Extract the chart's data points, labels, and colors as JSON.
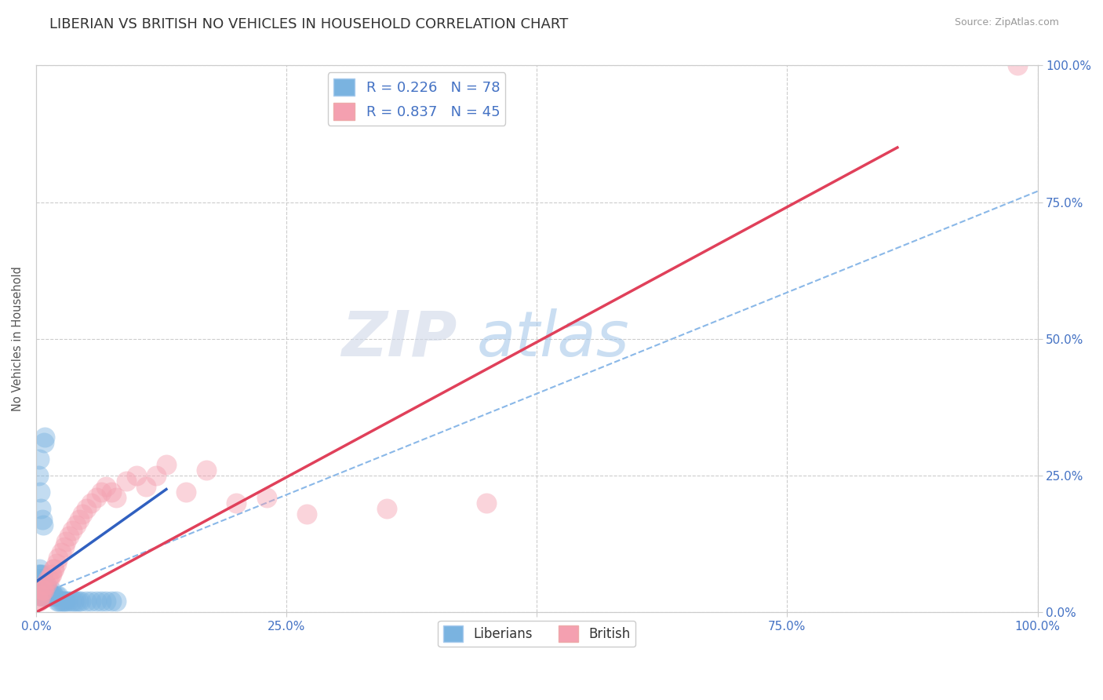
{
  "title": "LIBERIAN VS BRITISH NO VEHICLES IN HOUSEHOLD CORRELATION CHART",
  "source": "Source: ZipAtlas.com",
  "ylabel": "No Vehicles in Household",
  "xlim": [
    0,
    1.0
  ],
  "ylim": [
    0,
    1.0
  ],
  "xticks": [
    0,
    0.25,
    0.5,
    0.75,
    1.0
  ],
  "yticks": [
    0,
    0.25,
    0.5,
    0.75,
    1.0
  ],
  "xtick_labels": [
    "0.0%",
    "25.0%",
    "50.0%",
    "75.0%",
    "100.0%"
  ],
  "ytick_labels": [
    "0.0%",
    "25.0%",
    "50.0%",
    "75.0%",
    "100.0%"
  ],
  "liberian_color": "#7ab3e0",
  "british_color": "#f4a0b0",
  "liberian_line_color": "#3060c0",
  "british_line_color": "#e0405a",
  "liberian_R": 0.226,
  "liberian_N": 78,
  "british_R": 0.837,
  "british_N": 45,
  "background_color": "#ffffff",
  "grid_color": "#cccccc",
  "title_fontsize": 13,
  "tick_label_color": "#4472c4",
  "liberian_x": [
    0.001,
    0.001,
    0.001,
    0.002,
    0.002,
    0.002,
    0.002,
    0.003,
    0.003,
    0.003,
    0.003,
    0.003,
    0.003,
    0.004,
    0.004,
    0.004,
    0.004,
    0.005,
    0.005,
    0.005,
    0.005,
    0.005,
    0.006,
    0.006,
    0.006,
    0.006,
    0.007,
    0.007,
    0.007,
    0.007,
    0.008,
    0.008,
    0.008,
    0.009,
    0.009,
    0.01,
    0.01,
    0.01,
    0.011,
    0.011,
    0.012,
    0.012,
    0.013,
    0.014,
    0.015,
    0.015,
    0.016,
    0.017,
    0.018,
    0.02,
    0.021,
    0.022,
    0.023,
    0.025,
    0.027,
    0.028,
    0.03,
    0.032,
    0.035,
    0.038,
    0.04,
    0.042,
    0.045,
    0.05,
    0.055,
    0.06,
    0.065,
    0.07,
    0.075,
    0.08,
    0.002,
    0.003,
    0.004,
    0.005,
    0.006,
    0.007,
    0.008,
    0.009
  ],
  "liberian_y": [
    0.04,
    0.05,
    0.06,
    0.04,
    0.05,
    0.06,
    0.07,
    0.03,
    0.04,
    0.05,
    0.06,
    0.07,
    0.08,
    0.03,
    0.04,
    0.05,
    0.06,
    0.03,
    0.04,
    0.05,
    0.06,
    0.07,
    0.03,
    0.04,
    0.05,
    0.07,
    0.03,
    0.04,
    0.05,
    0.06,
    0.03,
    0.04,
    0.05,
    0.03,
    0.04,
    0.03,
    0.04,
    0.05,
    0.03,
    0.04,
    0.03,
    0.04,
    0.03,
    0.03,
    0.03,
    0.04,
    0.03,
    0.03,
    0.03,
    0.03,
    0.02,
    0.03,
    0.02,
    0.02,
    0.02,
    0.02,
    0.02,
    0.02,
    0.02,
    0.02,
    0.02,
    0.02,
    0.02,
    0.02,
    0.02,
    0.02,
    0.02,
    0.02,
    0.02,
    0.02,
    0.25,
    0.28,
    0.22,
    0.19,
    0.17,
    0.16,
    0.31,
    0.32
  ],
  "british_x": [
    0.002,
    0.003,
    0.004,
    0.005,
    0.006,
    0.007,
    0.008,
    0.009,
    0.01,
    0.012,
    0.013,
    0.015,
    0.016,
    0.017,
    0.018,
    0.02,
    0.022,
    0.025,
    0.028,
    0.03,
    0.033,
    0.036,
    0.04,
    0.043,
    0.046,
    0.05,
    0.055,
    0.06,
    0.065,
    0.07,
    0.075,
    0.08,
    0.09,
    0.1,
    0.11,
    0.12,
    0.13,
    0.15,
    0.17,
    0.2,
    0.23,
    0.27,
    0.35,
    0.45,
    0.98
  ],
  "british_y": [
    0.02,
    0.02,
    0.03,
    0.03,
    0.04,
    0.04,
    0.04,
    0.05,
    0.05,
    0.06,
    0.06,
    0.07,
    0.07,
    0.08,
    0.08,
    0.09,
    0.1,
    0.11,
    0.12,
    0.13,
    0.14,
    0.15,
    0.16,
    0.17,
    0.18,
    0.19,
    0.2,
    0.21,
    0.22,
    0.23,
    0.22,
    0.21,
    0.24,
    0.25,
    0.23,
    0.25,
    0.27,
    0.22,
    0.26,
    0.2,
    0.21,
    0.18,
    0.19,
    0.2,
    1.0
  ],
  "liberian_line_x": [
    0.0,
    0.13
  ],
  "liberian_line_y": [
    0.056,
    0.225
  ],
  "dashed_line_x": [
    0.0,
    1.0
  ],
  "dashed_line_y": [
    0.03,
    0.77
  ],
  "british_line_x": [
    0.0,
    0.86
  ],
  "british_line_y": [
    0.0,
    0.85
  ]
}
